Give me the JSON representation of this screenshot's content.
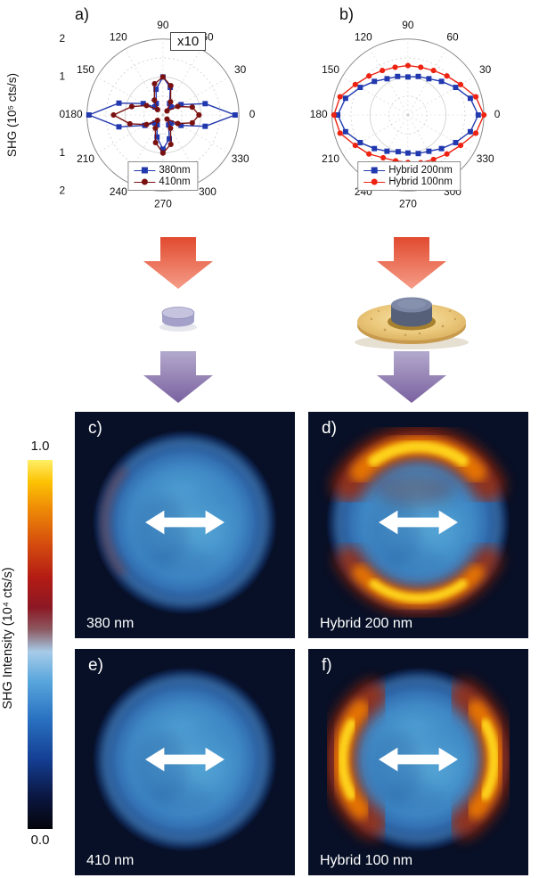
{
  "polar_axis": {
    "angle_labels": [
      "0",
      "30",
      "60",
      "90",
      "120",
      "150",
      "180",
      "210",
      "240",
      "270",
      "300",
      "330"
    ],
    "radial_tick_labels": [
      "2",
      "1",
      "0",
      "1",
      "2"
    ],
    "y_axis_label": "SHG (10⁵ cts/s)"
  },
  "panel_a": {
    "letter": "a)",
    "annotation": "x10"
  },
  "panel_b": {
    "letter": "b)"
  },
  "chart_data": [
    {
      "type": "polar-line",
      "panel": "a",
      "r_max": 2,
      "r_grid": [
        0.5,
        1,
        1.5,
        2
      ],
      "show_radial_labels": true,
      "annotation": "x10",
      "legend_position": "bottom-center",
      "angles_deg": [
        0,
        15,
        30,
        45,
        60,
        75,
        90,
        105,
        120,
        135,
        150,
        165,
        180,
        195,
        210,
        225,
        240,
        255,
        270,
        285,
        300,
        315,
        330,
        345
      ],
      "series": [
        {
          "name": "380nm",
          "color": "#2138ae",
          "marker": "square",
          "values": [
            1.9,
            1.15,
            0.55,
            0.3,
            0.35,
            0.75,
            1.0,
            0.7,
            0.35,
            0.3,
            0.6,
            1.2,
            1.95,
            1.2,
            0.55,
            0.3,
            0.3,
            0.6,
            0.9,
            0.65,
            0.3,
            0.3,
            0.55,
            1.15
          ]
        },
        {
          "name": "410nm",
          "color": "#7a1111",
          "marker": "circle",
          "values": [
            0.95,
            0.8,
            0.45,
            0.15,
            0.4,
            0.8,
            1.0,
            0.85,
            0.45,
            0.2,
            0.5,
            0.85,
            1.3,
            0.9,
            0.5,
            0.2,
            0.4,
            0.75,
            1.0,
            0.8,
            0.4,
            0.15,
            0.45,
            0.8
          ]
        }
      ]
    },
    {
      "type": "polar-line",
      "panel": "b",
      "r_max": 2,
      "r_grid": [
        0.5,
        1,
        1.5,
        2
      ],
      "show_radial_labels": false,
      "legend_position": "bottom-center",
      "angles_deg": [
        0,
        15,
        30,
        45,
        60,
        75,
        90,
        105,
        120,
        135,
        150,
        165,
        180,
        195,
        210,
        225,
        240,
        255,
        270,
        285,
        300,
        315,
        330,
        345
      ],
      "series": [
        {
          "name": "Hybrid 200nm",
          "color": "#2138ae",
          "marker": "square",
          "values": [
            1.85,
            1.7,
            1.45,
            1.25,
            1.1,
            1.05,
            1.0,
            1.05,
            1.1,
            1.25,
            1.45,
            1.7,
            1.85,
            1.7,
            1.45,
            1.25,
            1.1,
            1.0,
            1.0,
            1.05,
            1.1,
            1.25,
            1.45,
            1.7
          ]
        },
        {
          "name": "Hybrid 100nm",
          "color": "#ee2211",
          "marker": "circle",
          "values": [
            2.0,
            1.85,
            1.6,
            1.45,
            1.35,
            1.3,
            1.3,
            1.3,
            1.35,
            1.45,
            1.6,
            1.85,
            1.95,
            1.85,
            1.6,
            1.45,
            1.3,
            1.25,
            1.25,
            1.3,
            1.35,
            1.45,
            1.6,
            1.85
          ]
        }
      ]
    }
  ],
  "colorbar": {
    "max_label": "1.0",
    "min_label": "0.0",
    "axis_label": "SHG Intensity (10⁴ cts/s)",
    "gradient_stops": [
      "#04050a 0%",
      "#0b1743 9%",
      "#143f94 19%",
      "#2a72c2 30%",
      "#58a6dc 40%",
      "#a6cbe8 48%",
      "#8c5a62 54%",
      "#8c1824 60%",
      "#b31b14 68%",
      "#d44b0e 77%",
      "#ef8c06 87%",
      "#fcc203 94%",
      "#ffef66 100%"
    ]
  },
  "image_panels": [
    {
      "letter": "c)",
      "label": "380 nm",
      "hot_regions": "none"
    },
    {
      "letter": "d)",
      "label": "Hybrid 200 nm",
      "hot_regions": "top-bottom"
    },
    {
      "letter": "e)",
      "label": "410 nm",
      "hot_regions": "none"
    },
    {
      "letter": "f)",
      "label": "Hybrid 100 nm",
      "hot_regions": "left-right"
    }
  ],
  "icons": {
    "red_down_arrow": "block-arrow-down",
    "purple_down_arrow": "block-arrow-down",
    "polarization_arrow": "double-headed-horizontal-arrow",
    "left_schematic": "bare-nanodisk",
    "right_schematic": "nanodisk-on-gold-ring"
  },
  "accent_colors": {
    "series_blue": "#2138ae",
    "series_maroon": "#7a1111",
    "series_red": "#ee2211",
    "arrow_red_top": "#e14a2f",
    "arrow_red_bottom": "#f59d88",
    "arrow_purple_top": "#b3a9cd",
    "arrow_purple_bottom": "#7a619f",
    "map_background": "#071026",
    "map_blob_blue": "#4c9bd0",
    "hot_core_yellow": "#ffd81f"
  }
}
